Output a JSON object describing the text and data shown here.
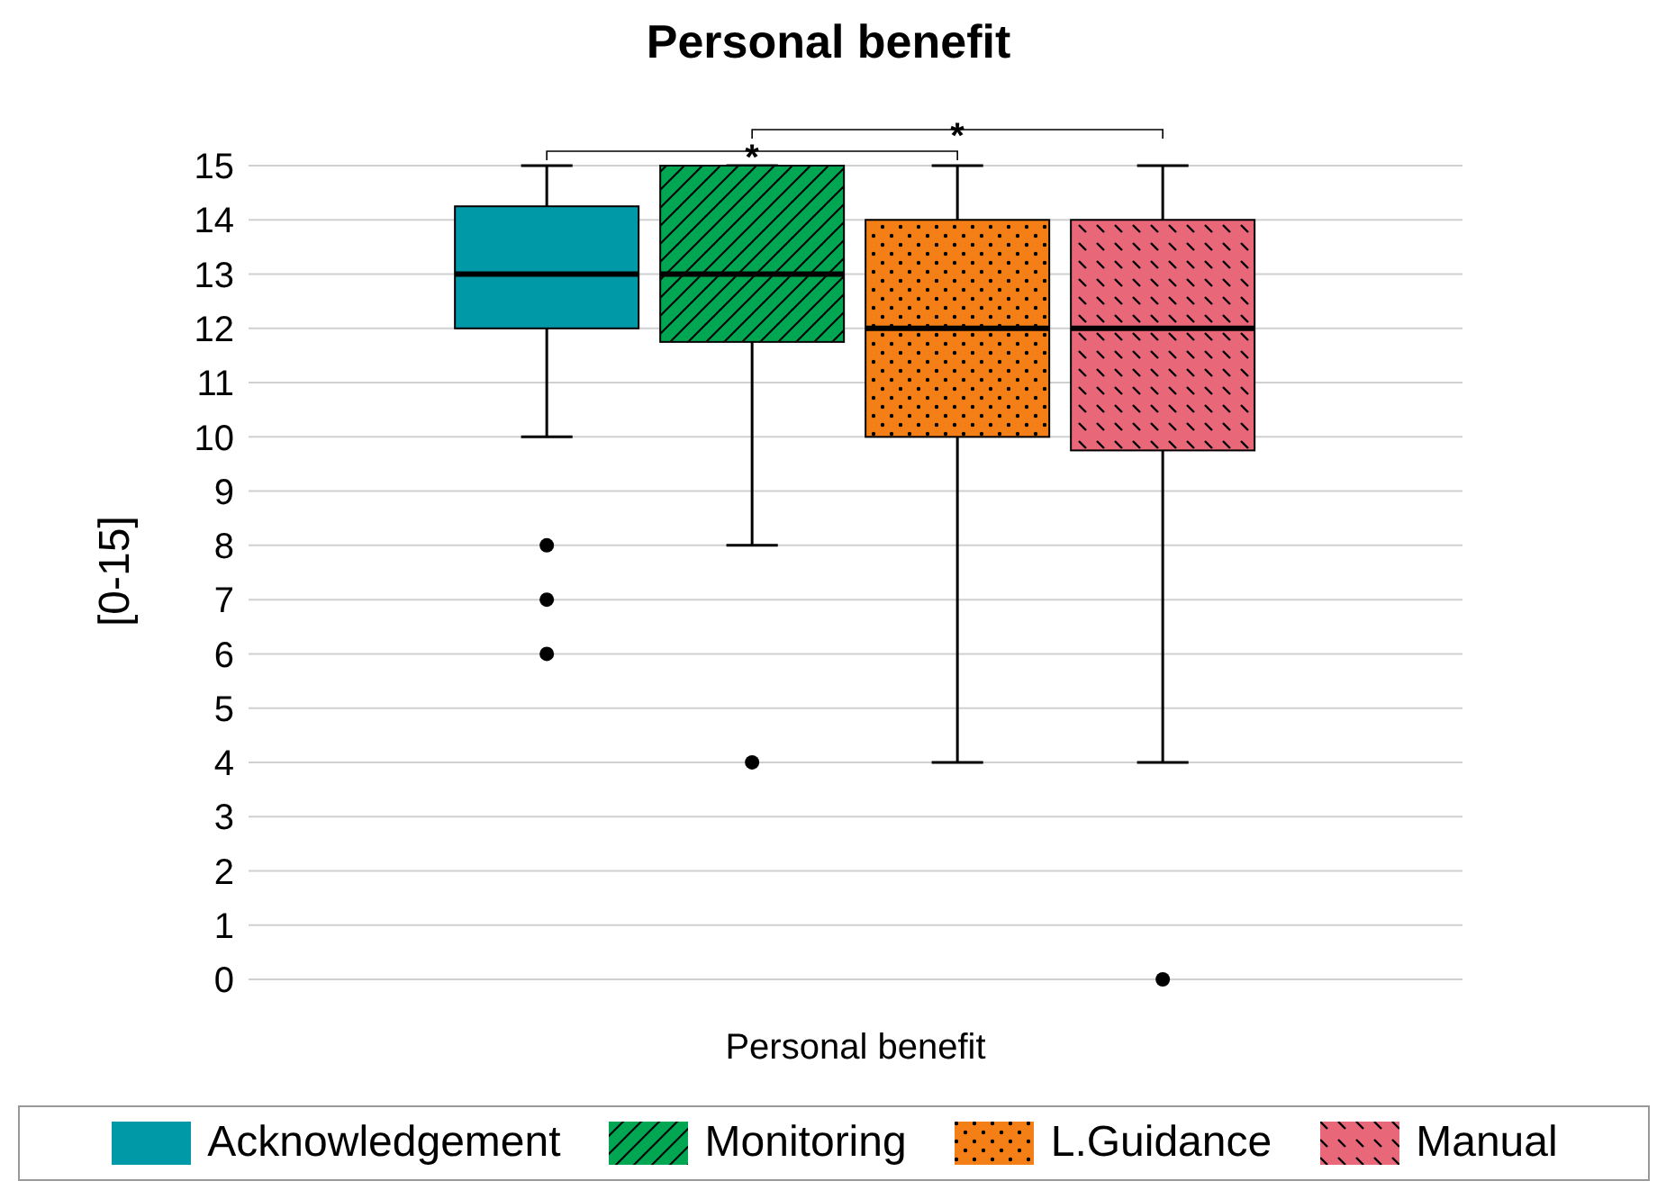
{
  "chart_data": {
    "type": "box",
    "title": "Personal benefit",
    "ylabel": "[0-15]",
    "categories": [
      "Personal benefit"
    ],
    "ylim": [
      0,
      15
    ],
    "yticks": [
      0,
      1,
      2,
      3,
      4,
      5,
      6,
      7,
      8,
      9,
      10,
      11,
      12,
      13,
      14,
      15
    ],
    "grid": "y",
    "legend": "bottom",
    "annotations": [
      "*",
      "*"
    ],
    "series": [
      {
        "name": "Acknowledgement",
        "color": "#0099a8",
        "boxes": [
          {
            "low": 10,
            "q1": 12,
            "median": 13,
            "q3": 14.25,
            "high": 15,
            "outliers": [
              8,
              7,
              6
            ]
          }
        ]
      },
      {
        "name": "Monitoring",
        "color": "#00a651",
        "boxes": [
          {
            "low": 8,
            "q1": 11.75,
            "median": 13,
            "q3": 15,
            "high": 15,
            "outliers": [
              4
            ]
          }
        ]
      },
      {
        "name": "L.Guidance",
        "color": "#f57f17",
        "boxes": [
          {
            "low": 4,
            "q1": 10,
            "median": 12,
            "q3": 14,
            "high": 15
          }
        ]
      },
      {
        "name": "Manual",
        "color": "#e8687a",
        "boxes": [
          {
            "low": 4,
            "q1": 9.75,
            "median": 12,
            "q3": 14,
            "high": 15,
            "outliers": [
              0
            ]
          }
        ]
      }
    ]
  }
}
